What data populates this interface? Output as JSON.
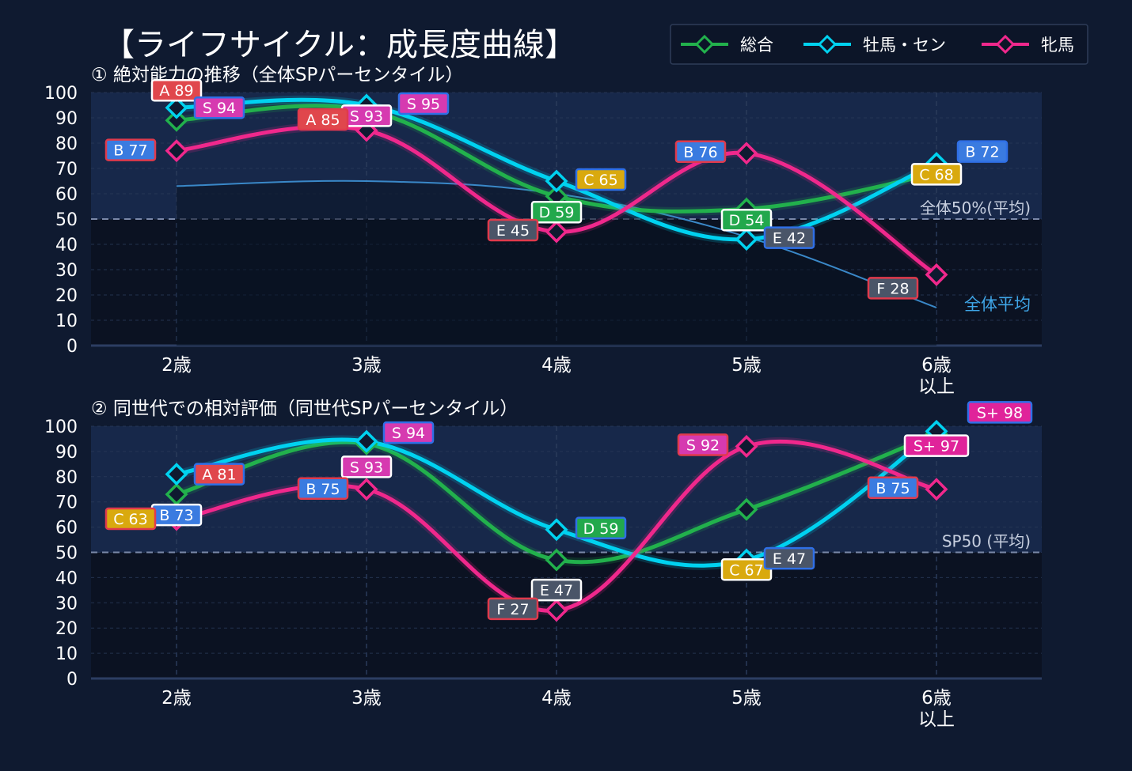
{
  "title": "【ライフサイクル：成長度曲線】",
  "legend": [
    {
      "name": "総合",
      "color": "#22b14c"
    },
    {
      "name": "牡馬・セン",
      "color": "#00d2f0"
    },
    {
      "name": "牝馬",
      "color": "#f0288c"
    }
  ],
  "grade_colors": {
    "S+": "#e0239a",
    "S": "#d63ab0",
    "A": "#e0474c",
    "B": "#3a7be0",
    "C": "#d9a90e",
    "D": "#22a84c",
    "E": "#4a5568",
    "F": "#4a5568"
  },
  "chart_data": [
    {
      "type": "line",
      "title": "① 絶対能力の推移（全体SPパーセンタイル）",
      "categories": [
        "2歳",
        "3歳",
        "4歳",
        "5歳",
        "6歳\n以上"
      ],
      "ylim": [
        0,
        100
      ],
      "yticks": [
        0,
        10,
        20,
        30,
        40,
        50,
        60,
        70,
        80,
        90,
        100
      ],
      "ref_line": {
        "value": 50,
        "label": "全体50%(平均)"
      },
      "area": {
        "label": "全体平均",
        "values": [
          63,
          65,
          60,
          43,
          15
        ]
      },
      "series": [
        {
          "name": "総合",
          "values": [
            89,
            93,
            59,
            54,
            68
          ],
          "grades": [
            "A",
            "S",
            "D",
            "D",
            "C"
          ]
        },
        {
          "name": "牡馬・セン",
          "values": [
            94,
            95,
            65,
            42,
            72
          ],
          "grades": [
            "S",
            "S",
            "C",
            "E",
            "B"
          ]
        },
        {
          "name": "牝馬",
          "values": [
            77,
            85,
            45,
            76,
            28
          ],
          "grades": [
            "B",
            "A",
            "E",
            "B",
            "F"
          ]
        }
      ]
    },
    {
      "type": "line",
      "title": "② 同世代での相対評価（同世代SPパーセンタイル）",
      "categories": [
        "2歳",
        "3歳",
        "4歳",
        "5歳",
        "6歳\n以上"
      ],
      "ylim": [
        0,
        100
      ],
      "yticks": [
        0,
        10,
        20,
        30,
        40,
        50,
        60,
        70,
        80,
        90,
        100
      ],
      "ref_line": {
        "value": 50,
        "label": "SP50 (平均)"
      },
      "series": [
        {
          "name": "総合",
          "values": [
            73,
            93,
            47,
            67,
            97
          ],
          "grades": [
            "B",
            "S",
            "E",
            "C",
            "S+"
          ]
        },
        {
          "name": "牡馬・セン",
          "values": [
            81,
            94,
            59,
            47,
            98
          ],
          "grades": [
            "A",
            "S",
            "D",
            "E",
            "S+"
          ]
        },
        {
          "name": "牝馬",
          "values": [
            63,
            75,
            27,
            92,
            75
          ],
          "grades": [
            "C",
            "B",
            "F",
            "S",
            "B"
          ]
        }
      ]
    }
  ]
}
